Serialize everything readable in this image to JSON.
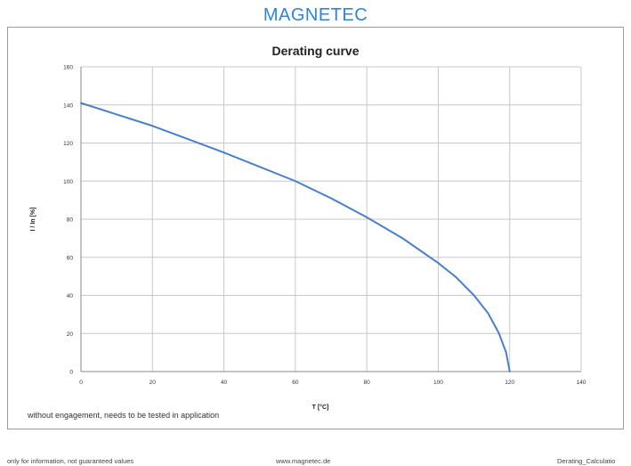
{
  "brand": "MAGNETEC",
  "note": "without engagement, needs to be tested in application",
  "footer": {
    "left": "only for information, not guaranteed values",
    "center": "www.magnetec.de",
    "right": "Derating_Calculatio"
  },
  "colors": {
    "brand": "#2e86d6",
    "line": "#4a7fc9",
    "grid": "#c8c8c8"
  },
  "chart_data": {
    "type": "line",
    "title": "Derating curve",
    "xlabel": "T [°C]",
    "ylabel": "I / In [%]",
    "xlim": [
      0,
      140
    ],
    "ylim": [
      0,
      160
    ],
    "xticks": [
      0,
      20,
      40,
      60,
      80,
      100,
      120,
      140
    ],
    "yticks": [
      0,
      20,
      40,
      60,
      80,
      100,
      120,
      140,
      160
    ],
    "grid": true,
    "series": [
      {
        "x": [
          0,
          10,
          20,
          30,
          40,
          50,
          60,
          70,
          80,
          90,
          100,
          105,
          110,
          114,
          117,
          119,
          120
        ],
        "y": [
          141,
          135,
          129,
          122,
          115,
          107.5,
          100,
          91,
          81,
          70,
          57,
          49.5,
          40,
          30.5,
          20,
          10,
          0
        ]
      }
    ]
  }
}
